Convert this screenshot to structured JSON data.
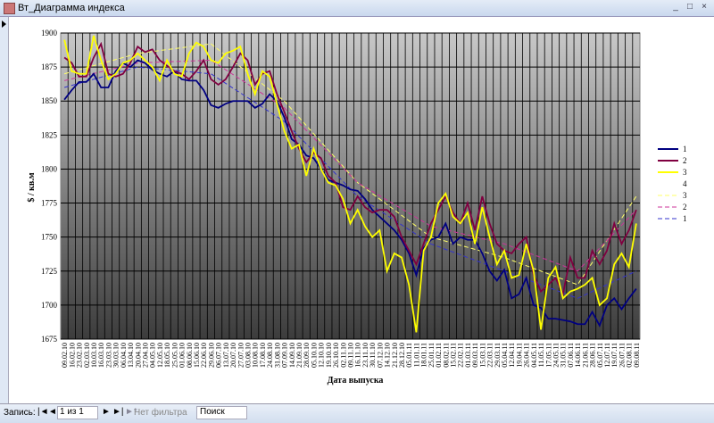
{
  "window": {
    "title": "Вт_Диаграмма индекса"
  },
  "status": {
    "record_label": "Запись:",
    "position": "1 из 1",
    "filter": "Нет фильтра",
    "search": "Поиск"
  },
  "chart_data": {
    "type": "line",
    "ylabel": "$ / кв.м",
    "xlabel": "Дата выпуска",
    "ylim": [
      1675,
      1900
    ],
    "yticks": [
      1675,
      1700,
      1725,
      1750,
      1775,
      1800,
      1825,
      1850,
      1875,
      1900
    ],
    "grid": true,
    "legend": "right",
    "categories": [
      "09.02.10",
      "16.02.10",
      "23.02.10",
      "02.03.10",
      "10.03.10",
      "16.03.10",
      "23.03.10",
      "30.03.10",
      "06.04.10",
      "13.04.10",
      "20.04.10",
      "27.04.10",
      "04.05.10",
      "12.05.10",
      "18.05.10",
      "25.05.10",
      "01.06.10",
      "08.06.10",
      "15.06.10",
      "22.06.10",
      "29.06.10",
      "06.07.10",
      "13.07.10",
      "20.07.10",
      "27.07.10",
      "03.08.10",
      "10.08.10",
      "17.08.10",
      "24.08.10",
      "31.08.10",
      "07.09.10",
      "14.09.10",
      "21.09.10",
      "28.09.10",
      "05.10.10",
      "12.10.10",
      "19.10.10",
      "26.10.10",
      "02.11.10",
      "09.11.10",
      "16.11.10",
      "23.11.10",
      "30.11.10",
      "07.12.10",
      "14.12.10",
      "21.12.10",
      "28.12.10",
      "05.01.11",
      "11.01.11",
      "18.01.11",
      "25.01.11",
      "01.02.11",
      "08.02.11",
      "15.02.11",
      "22.02.11",
      "01.03.11",
      "09.03.11",
      "15.03.11",
      "22.03.11",
      "29.03.11",
      "05.04.11",
      "12.04.11",
      "19.04.11",
      "26.04.11",
      "04.05.11",
      "11.05.11",
      "17.05.11",
      "24.05.11",
      "31.05.11",
      "07.06.11",
      "14.06.11",
      "21.06.11",
      "28.06.11",
      "05.07.11",
      "12.07.11",
      "19.07.11",
      "26.07.11",
      "02.08.11",
      "09.08.11"
    ],
    "series": [
      {
        "name": "1",
        "color": "#000080",
        "values": [
          1851,
          1858,
          1864,
          1864,
          1870,
          1860,
          1860,
          1872,
          1878,
          1875,
          1880,
          1878,
          1873,
          1870,
          1868,
          1872,
          1866,
          1865,
          1865,
          1858,
          1847,
          1845,
          1848,
          1850,
          1850,
          1850,
          1845,
          1848,
          1855,
          1850,
          1838,
          1822,
          1818,
          1810,
          1808,
          1800,
          1792,
          1790,
          1788,
          1785,
          1784,
          1778,
          1770,
          1765,
          1760,
          1755,
          1748,
          1738,
          1722,
          1742,
          1748,
          1750,
          1760,
          1745,
          1750,
          1748,
          1748,
          1738,
          1725,
          1718,
          1726,
          1705,
          1708,
          1720,
          1700,
          1698,
          1690,
          1690,
          1689,
          1688,
          1686,
          1686,
          1695,
          1685,
          1700,
          1705,
          1697,
          1705,
          1712
        ]
      },
      {
        "name": "2",
        "color": "#800040",
        "values": [
          1882,
          1878,
          1868,
          1868,
          1882,
          1892,
          1870,
          1868,
          1870,
          1878,
          1890,
          1886,
          1888,
          1880,
          1876,
          1872,
          1870,
          1866,
          1872,
          1880,
          1866,
          1862,
          1866,
          1875,
          1885,
          1880,
          1862,
          1870,
          1872,
          1855,
          1842,
          1828,
          1815,
          1805,
          1812,
          1808,
          1795,
          1790,
          1772,
          1770,
          1780,
          1772,
          1768,
          1770,
          1770,
          1765,
          1750,
          1740,
          1730,
          1745,
          1760,
          1770,
          1780,
          1768,
          1760,
          1775,
          1755,
          1780,
          1760,
          1745,
          1740,
          1738,
          1745,
          1750,
          1722,
          1710,
          1715,
          1720,
          1708,
          1735,
          1720,
          1720,
          1740,
          1730,
          1740,
          1760,
          1745,
          1755,
          1770
        ]
      },
      {
        "name": "3",
        "color": "#ffff00",
        "values": [
          1895,
          1872,
          1870,
          1870,
          1898,
          1880,
          1866,
          1870,
          1878,
          1880,
          1885,
          1880,
          1875,
          1865,
          1880,
          1870,
          1868,
          1885,
          1893,
          1890,
          1880,
          1878,
          1885,
          1887,
          1890,
          1870,
          1855,
          1872,
          1868,
          1848,
          1828,
          1815,
          1818,
          1795,
          1815,
          1800,
          1790,
          1788,
          1778,
          1760,
          1770,
          1758,
          1750,
          1755,
          1725,
          1738,
          1735,
          1715,
          1680,
          1740,
          1750,
          1775,
          1782,
          1765,
          1760,
          1768,
          1745,
          1772,
          1750,
          1730,
          1740,
          1720,
          1722,
          1745,
          1725,
          1682,
          1720,
          1728,
          1705,
          1710,
          1712,
          1715,
          1720,
          1700,
          1705,
          1730,
          1738,
          1728,
          1760
        ]
      },
      {
        "name": "4",
        "color": "#ffffff",
        "values": [
          null,
          null,
          null,
          null,
          null,
          null,
          null,
          null,
          null,
          null,
          null,
          null,
          null,
          null,
          null,
          null,
          null,
          null,
          null,
          null,
          null,
          null,
          null,
          null,
          null,
          null,
          null,
          null,
          null,
          null,
          null,
          null,
          null,
          null,
          null,
          null,
          null,
          null,
          null,
          null,
          null,
          null,
          null,
          null,
          null,
          null,
          null,
          null,
          null,
          null,
          null,
          null,
          null,
          null,
          null,
          null,
          null,
          null,
          null,
          null,
          null,
          null,
          null,
          null,
          null,
          null,
          null,
          null,
          null,
          null,
          null,
          null,
          null,
          null,
          null,
          null,
          null,
          null,
          null
        ]
      }
    ],
    "trendlines": [
      {
        "name": "3",
        "color": "#ffff66",
        "x": [
          0,
          10,
          20,
          30,
          40,
          50,
          60,
          70,
          78
        ],
        "values": [
          1870,
          1885,
          1892,
          1850,
          1790,
          1750,
          1735,
          1715,
          1780
        ]
      },
      {
        "name": "2",
        "color": "#cc3399",
        "x": [
          0,
          10,
          20,
          30,
          40,
          50,
          60,
          70,
          78
        ],
        "values": [
          1865,
          1878,
          1880,
          1845,
          1790,
          1758,
          1745,
          1725,
          1770
        ]
      },
      {
        "name": "1",
        "color": "#3333cc",
        "x": [
          0,
          10,
          20,
          30,
          40,
          50,
          60,
          70,
          78
        ],
        "values": [
          1860,
          1875,
          1870,
          1835,
          1780,
          1745,
          1725,
          1705,
          1725
        ]
      }
    ]
  }
}
